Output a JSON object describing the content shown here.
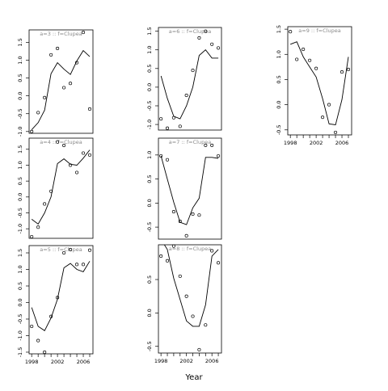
{
  "xlabel": "Year",
  "chart_data": [
    {
      "type": "scatter",
      "title": "a=3 :: f=Clupea",
      "x": [
        1998,
        1999,
        2000,
        2001,
        2002,
        2003,
        2004,
        2005,
        2006,
        2007
      ],
      "points": [
        -1.0,
        -0.47,
        -0.05,
        1.15,
        1.33,
        0.23,
        0.35,
        0.93,
        1.78,
        -0.37
      ],
      "fit": [
        -0.95,
        -0.75,
        -0.4,
        0.62,
        0.93,
        0.75,
        0.6,
        0.98,
        1.27,
        1.1
      ],
      "ylim": [
        -1.05,
        1.85
      ],
      "yticks": [
        -1.0,
        -0.5,
        0.0,
        0.5,
        1.0,
        1.5
      ],
      "ytick_labels": [
        "-1.0",
        "-0.5",
        "0.0",
        "0.5",
        "1.0",
        "1.5"
      ],
      "xticks": [],
      "xtick_labels": []
    },
    {
      "type": "scatter",
      "title": "a=4 :: f=Clupea",
      "x": [
        1998,
        1999,
        2000,
        2001,
        2002,
        2003,
        2004,
        2005,
        2006,
        2007
      ],
      "points": [
        -1.25,
        -0.95,
        -0.22,
        0.18,
        1.73,
        1.62,
        1.0,
        0.77,
        1.38,
        1.32
      ],
      "fit": [
        -0.7,
        -0.85,
        -0.5,
        0.0,
        1.05,
        1.2,
        1.03,
        1.0,
        1.22,
        1.48
      ],
      "ylim": [
        -1.3,
        1.85
      ],
      "yticks": [
        -1.0,
        -0.5,
        0.0,
        0.5,
        1.0,
        1.5
      ],
      "ytick_labels": [
        "-1.0",
        "-0.5",
        "0.0",
        "0.5",
        "1.0",
        "1.5"
      ],
      "xticks": [],
      "xtick_labels": []
    },
    {
      "type": "scatter",
      "title": "a=5 :: f=Clupea",
      "x": [
        1998,
        1999,
        2000,
        2001,
        2002,
        2003,
        2004,
        2005,
        2006,
        2007
      ],
      "points": [
        -0.72,
        -1.15,
        -1.5,
        -0.42,
        0.15,
        1.5,
        1.6,
        1.15,
        1.15,
        1.58
      ],
      "fit": [
        -0.15,
        -0.72,
        -0.85,
        -0.47,
        0.1,
        1.05,
        1.18,
        1.0,
        0.93,
        1.25
      ],
      "ylim": [
        -1.55,
        1.72
      ],
      "yticks": [
        -1.5,
        -1.0,
        -0.5,
        0.0,
        0.5,
        1.0,
        1.5
      ],
      "ytick_labels": [
        "-1.5",
        "-1.0",
        "-0.5",
        "0.0",
        "0.5",
        "1.0",
        "1.5"
      ],
      "xticks": [
        1998,
        2002,
        2006
      ],
      "xtick_labels": [
        "1998",
        "2002",
        "2006"
      ]
    },
    {
      "type": "scatter",
      "title": "a=6 :: f=Clupea",
      "x": [
        1998,
        1999,
        2000,
        2001,
        2002,
        2003,
        2004,
        2005,
        2006,
        2007
      ],
      "points": [
        -0.85,
        -1.1,
        -0.82,
        -1.05,
        -0.22,
        0.45,
        1.32,
        1.5,
        1.15,
        1.05
      ],
      "fit": [
        0.3,
        -0.3,
        -0.78,
        -0.85,
        -0.5,
        0.0,
        0.85,
        1.0,
        0.78,
        0.78
      ],
      "ylim": [
        -1.15,
        1.6
      ],
      "yticks": [
        -1.0,
        -0.5,
        0.0,
        0.5,
        1.0,
        1.5
      ],
      "ytick_labels": [
        "-1.0",
        "-0.5",
        "0.0",
        "0.5",
        "1.0",
        "1.5"
      ],
      "xticks": [],
      "xtick_labels": []
    },
    {
      "type": "scatter",
      "title": "a=7 :: f=Clupea",
      "x": [
        1998,
        1999,
        2000,
        2001,
        2002,
        2003,
        2004,
        2005,
        2006,
        2007
      ],
      "points": [
        0.98,
        0.9,
        -0.18,
        -0.38,
        -0.68,
        -0.23,
        -0.25,
        1.2,
        1.2,
        0.98
      ],
      "fit": [
        0.98,
        0.5,
        0.02,
        -0.4,
        -0.45,
        -0.1,
        0.1,
        0.95,
        0.95,
        0.93
      ],
      "ylim": [
        -0.75,
        1.35
      ],
      "yticks": [
        -0.5,
        0.0,
        0.5,
        1.0
      ],
      "ytick_labels": [
        "-0.5",
        "0.0",
        "0.5",
        "1.0"
      ],
      "xticks": [],
      "xtick_labels": []
    },
    {
      "type": "scatter",
      "title": "a=8 :: f=Clupea",
      "x": [
        1998,
        1999,
        2000,
        2001,
        2002,
        2003,
        2004,
        2005,
        2006,
        2007
      ],
      "points": [
        0.85,
        0.78,
        1.0,
        0.55,
        0.25,
        -0.05,
        -0.55,
        -0.18,
        0.93,
        0.75
      ],
      "fit": [
        1.1,
        0.95,
        0.52,
        0.2,
        -0.12,
        -0.2,
        -0.2,
        0.12,
        0.85,
        0.95
      ],
      "ylim": [
        -0.6,
        1.02
      ],
      "yticks": [
        -0.5,
        0.0,
        0.5
      ],
      "ytick_labels": [
        "-0.5",
        "0.0",
        "0.5"
      ],
      "xticks": [
        1998,
        2002,
        2006
      ],
      "xtick_labels": [
        "1998",
        "2002",
        "2006"
      ]
    },
    {
      "type": "scatter",
      "title": "a=9 :: f=Clupea",
      "x": [
        1998,
        1999,
        2000,
        2001,
        2002,
        2003,
        2004,
        2005,
        2006,
        2007
      ],
      "points": [
        1.45,
        0.9,
        1.1,
        0.88,
        0.72,
        -0.25,
        0.0,
        -0.55,
        0.65,
        0.7
      ],
      "fit": [
        1.2,
        1.25,
        0.95,
        0.75,
        0.55,
        0.12,
        -0.38,
        -0.4,
        0.1,
        0.95
      ],
      "ylim": [
        -0.6,
        1.55
      ],
      "yticks": [
        -0.5,
        0.0,
        0.5,
        1.0,
        1.5
      ],
      "ytick_labels": [
        "-0.5",
        "0.0",
        "0.5",
        "1.0",
        "1.5"
      ],
      "xticks": [
        1998,
        2002,
        2006
      ],
      "xtick_labels": [
        "1998",
        "2002",
        "2006"
      ]
    }
  ]
}
